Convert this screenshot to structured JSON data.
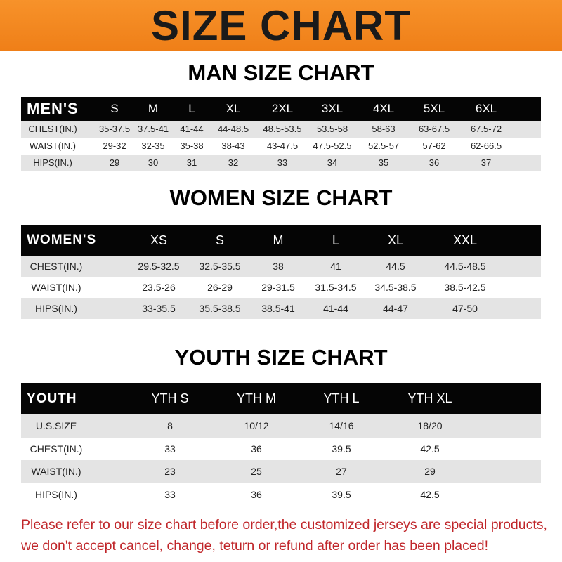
{
  "banner": {
    "title": "SIZE CHART",
    "color": "#f28a22"
  },
  "men": {
    "heading": "MAN SIZE CHART",
    "header": [
      "MEN'S",
      "S",
      "M",
      "L",
      "XL",
      "2XL",
      "3XL",
      "4XL",
      "5XL",
      "6XL"
    ],
    "rows": [
      [
        "CHEST(IN.)",
        "35-37.5",
        "37.5-41",
        "41-44",
        "44-48.5",
        "48.5-53.5",
        "53.5-58",
        "58-63",
        "63-67.5",
        "67.5-72"
      ],
      [
        "WAIST(IN.)",
        "29-32",
        "32-35",
        "35-38",
        "38-43",
        "43-47.5",
        "47.5-52.5",
        "52.5-57",
        "57-62",
        "62-66.5"
      ],
      [
        "HIPS(IN.)",
        "29",
        "30",
        "31",
        "32",
        "33",
        "34",
        "35",
        "36",
        "37"
      ]
    ]
  },
  "women": {
    "heading": "WOMEN SIZE CHART",
    "header": [
      "WOMEN'S",
      "XS",
      "S",
      "M",
      "L",
      "XL",
      "XXL"
    ],
    "rows": [
      [
        "CHEST(IN.)",
        "29.5-32.5",
        "32.5-35.5",
        "38",
        "41",
        "44.5",
        "44.5-48.5"
      ],
      [
        "WAIST(IN.)",
        "23.5-26",
        "26-29",
        "29-31.5",
        "31.5-34.5",
        "34.5-38.5",
        "38.5-42.5"
      ],
      [
        "HIPS(IN.)",
        "33-35.5",
        "35.5-38.5",
        "38.5-41",
        "41-44",
        "44-47",
        "47-50"
      ]
    ]
  },
  "youth": {
    "heading": "YOUTH SIZE CHART",
    "header": [
      "YOUTH",
      "YTH S",
      "YTH M",
      "YTH L",
      "YTH XL"
    ],
    "rows": [
      [
        "U.S.SIZE",
        "8",
        "10/12",
        "14/16",
        "18/20"
      ],
      [
        "CHEST(IN.)",
        "33",
        "36",
        "39.5",
        "42.5"
      ],
      [
        "WAIST(IN.)",
        "23",
        "25",
        "27",
        "29"
      ],
      [
        "HIPS(IN.)",
        "33",
        "36",
        "39.5",
        "42.5"
      ]
    ]
  },
  "notice": {
    "line1": "Please refer to our size chart before order,the customized jerseys are special products,",
    "line2": "we don't accept cancel, change, teturn or refund after order has been placed!",
    "color": "#c0262a"
  }
}
